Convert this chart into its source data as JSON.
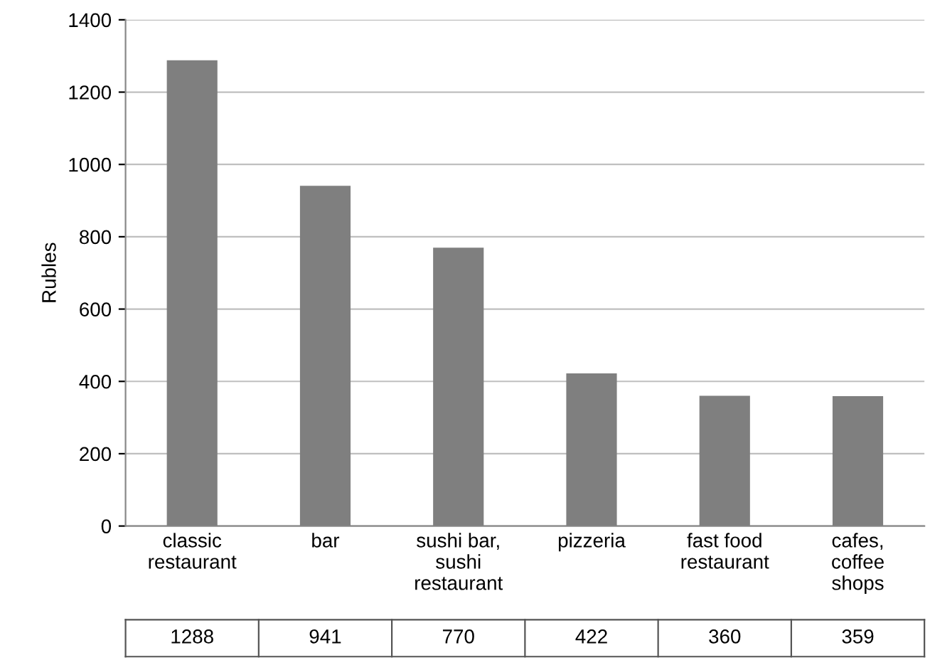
{
  "chart_data": {
    "type": "bar",
    "ylabel": "Rubles",
    "categories": [
      "classic\nrestaurant",
      "bar",
      "sushi bar,\nsushi\nrestaurant",
      "pizzeria",
      "fast food\nrestaurant",
      "cafes,\ncoffee\nshops"
    ],
    "values": [
      1288,
      941,
      770,
      422,
      360,
      359
    ],
    "color": "#7f7f7f",
    "ylim": [
      0,
      1400
    ],
    "yticks": [
      0,
      200,
      400,
      600,
      800,
      1000,
      1200,
      1400
    ],
    "grid": "y",
    "data_labels": true
  }
}
